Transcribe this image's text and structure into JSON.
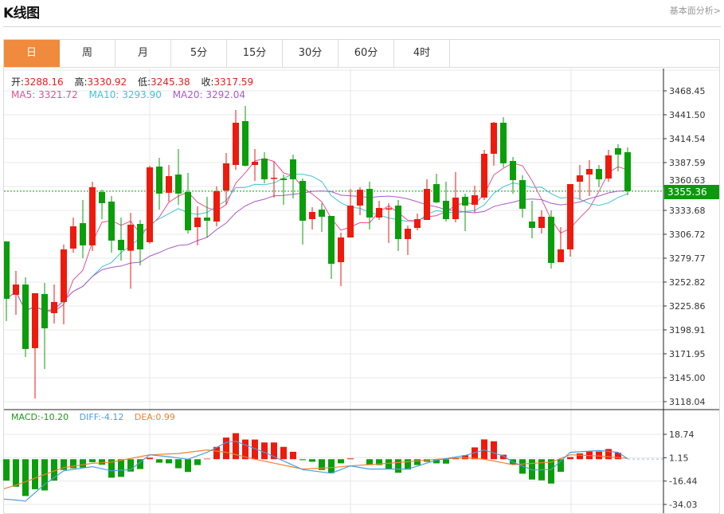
{
  "header": {
    "title": "K线图",
    "link": "基本面分析>"
  },
  "tabs": [
    {
      "label": "日",
      "active": true
    },
    {
      "label": "周"
    },
    {
      "label": "月"
    },
    {
      "label": "5分"
    },
    {
      "label": "15分"
    },
    {
      "label": "30分"
    },
    {
      "label": "60分"
    },
    {
      "label": "4时"
    }
  ],
  "info": {
    "open_label": "开:",
    "open": "3288.16",
    "high_label": "高:",
    "high": "3330.92",
    "low_label": "低:",
    "low": "3245.38",
    "close_label": "收:",
    "close": "3317.59"
  },
  "ma": {
    "ma5_label": "MA5:",
    "ma5": "3321.72",
    "ma10_label": "MA10:",
    "ma10": "3293.90",
    "ma20_label": "MA20:",
    "ma20": "3292.04"
  },
  "macd_info": {
    "macd_label": "MACD:",
    "macd": "-10.20",
    "diff_label": "DIFF:",
    "diff": "-4.12",
    "dea_label": "DEA:",
    "dea": "0.99"
  },
  "colors": {
    "up": "#ee1a0c",
    "down": "#0a9e0a",
    "ma5": "#e5508f",
    "ma10": "#3fc4d4",
    "ma20": "#a85ac8",
    "diff": "#4a9de0",
    "dea": "#f08030",
    "macd": "#1a9a1a",
    "accent": "#f08a3c",
    "last_price": "#0a9a0a"
  },
  "chart_data": [
    {
      "type": "candlestick",
      "ohlc_order": [
        "open",
        "high",
        "low",
        "close"
      ],
      "candles": [
        [
          3298.7,
          3298.7,
          3208.8,
          3234.0
        ],
        [
          3238.5,
          3265.4,
          3216.0,
          3250.1
        ],
        [
          3250.1,
          3258.2,
          3168.4,
          3177.4
        ],
        [
          3178.3,
          3240.3,
          3121.6,
          3240.3
        ],
        [
          3239.4,
          3251.9,
          3154.9,
          3200.7
        ],
        [
          3217.8,
          3250.1,
          3206.1,
          3230.4
        ],
        [
          3230.4,
          3295.1,
          3205.2,
          3289.7
        ],
        [
          3290.6,
          3325.6,
          3286.1,
          3315.7
        ],
        [
          3319.3,
          3345.4,
          3279.8,
          3294.2
        ],
        [
          3294.2,
          3366.0,
          3287.9,
          3359.8
        ],
        [
          3354.4,
          3357.0,
          3323.8,
          3341.8
        ],
        [
          3343.6,
          3349.9,
          3286.1,
          3299.6
        ],
        [
          3300.5,
          3325.6,
          3277.1,
          3288.8
        ],
        [
          3288.16,
          3330.92,
          3245.38,
          3317.59
        ],
        [
          3318.4,
          3322.9,
          3271.7,
          3289.7
        ],
        [
          3297.8,
          3384.0,
          3296.0,
          3382.2
        ],
        [
          3383.1,
          3393.0,
          3334.6,
          3352.6
        ],
        [
          3353.5,
          3384.9,
          3343.6,
          3372.3
        ],
        [
          3374.1,
          3402.9,
          3340.0,
          3352.6
        ],
        [
          3354.4,
          3375.9,
          3307.6,
          3311.2
        ],
        [
          3314.8,
          3338.2,
          3294.2,
          3325.6
        ],
        [
          3325.6,
          3349.0,
          3303.1,
          3322.0
        ],
        [
          3321.1,
          3360.7,
          3315.7,
          3355.3
        ],
        [
          3356.1,
          3398.4,
          3340.0,
          3386.7
        ],
        [
          3384.9,
          3446.9,
          3379.5,
          3432.5
        ],
        [
          3434.3,
          3451.4,
          3383.1,
          3384.0
        ],
        [
          3384.9,
          3402.9,
          3366.9,
          3388.5
        ],
        [
          3392.1,
          3399.3,
          3364.2,
          3368.7
        ],
        [
          3369.6,
          3388.5,
          3348.1,
          3370.5
        ],
        [
          3369.6,
          3374.1,
          3340.0,
          3367.8
        ],
        [
          3391.2,
          3396.6,
          3347.2,
          3368.7
        ],
        [
          3366.9,
          3369.6,
          3295.1,
          3322.0
        ],
        [
          3323.8,
          3337.3,
          3312.1,
          3331.9
        ],
        [
          3334.6,
          3341.8,
          3309.4,
          3326.5
        ],
        [
          3327.4,
          3327.4,
          3256.4,
          3273.5
        ],
        [
          3275.3,
          3308.5,
          3248.3,
          3303.1
        ],
        [
          3303.1,
          3357.9,
          3303.1,
          3339.1
        ],
        [
          3339.1,
          3359.8,
          3328.3,
          3357.0
        ],
        [
          3357.9,
          3366.0,
          3312.1,
          3325.6
        ],
        [
          3325.6,
          3344.5,
          3322.9,
          3336.4
        ],
        [
          3335.0,
          3341.8,
          3296.9,
          3336.0
        ],
        [
          3339.1,
          3345.4,
          3287.9,
          3301.3
        ],
        [
          3301.3,
          3316.6,
          3283.4,
          3313.0
        ],
        [
          3313.9,
          3330.1,
          3311.2,
          3323.8
        ],
        [
          3322.9,
          3368.7,
          3322.9,
          3357.9
        ],
        [
          3363.3,
          3375.0,
          3341.8,
          3342.7
        ],
        [
          3344.5,
          3366.0,
          3321.1,
          3323.8
        ],
        [
          3323.8,
          3376.8,
          3320.2,
          3348.1
        ],
        [
          3349.0,
          3352.6,
          3310.3,
          3339.1
        ],
        [
          3340.0,
          3361.5,
          3331.0,
          3350.8
        ],
        [
          3348.1,
          3402.0,
          3345.4,
          3397.5
        ],
        [
          3397.5,
          3433.4,
          3384.0,
          3432.5
        ],
        [
          3432.5,
          3438.8,
          3382.2,
          3386.7
        ],
        [
          3389.4,
          3393.9,
          3352.6,
          3367.8
        ],
        [
          3367.8,
          3373.2,
          3325.6,
          3335.5
        ],
        [
          3321.1,
          3344.5,
          3302.2,
          3313.9
        ],
        [
          3313.9,
          3333.7,
          3307.6,
          3326.5
        ],
        [
          3326.5,
          3333.7,
          3268.1,
          3274.4
        ],
        [
          3275.3,
          3314.8,
          3275.3,
          3289.7
        ],
        [
          3289.7,
          3363.3,
          3281.6,
          3363.3
        ],
        [
          3366.0,
          3384.9,
          3346.3,
          3373.2
        ],
        [
          3374.1,
          3390.3,
          3349.9,
          3380.4
        ],
        [
          3380.4,
          3384.9,
          3359.8,
          3368.7
        ],
        [
          3369.6,
          3402.0,
          3366.0,
          3395.7
        ],
        [
          3403.8,
          3408.3,
          3377.7,
          3396.6
        ],
        [
          3399.3,
          3404.7,
          3350.8,
          3355.36
        ]
      ],
      "moving_averages": [
        5,
        10,
        20
      ],
      "y_ticks": [
        "3468.45",
        "3441.50",
        "3414.54",
        "3387.59",
        "3360.63",
        "3333.68",
        "3306.72",
        "3279.77",
        "3252.82",
        "3225.86",
        "3198.91",
        "3171.95",
        "3145.00",
        "3118.04"
      ],
      "ylim": [
        3118.04,
        3468.45
      ],
      "last_price": "3355.36",
      "grid": true
    },
    {
      "type": "bar",
      "name": "MACD",
      "histogram": [
        -16.1,
        -20.7,
        -27.7,
        -22.6,
        -23.5,
        -16.1,
        -8.1,
        -6.8,
        -6.3,
        -2.2,
        -4.1,
        -13.9,
        -13.3,
        -9.3,
        -7.4,
        1.1,
        -2.6,
        -3.1,
        -6.8,
        -9.6,
        -4.4,
        0.4,
        9.3,
        16.3,
        19.6,
        14.8,
        14.8,
        12.6,
        12.6,
        9.3,
        5.6,
        -0.7,
        -1.9,
        -8.1,
        -10.5,
        -3.1,
        0.6,
        0,
        -4.4,
        -4.4,
        -7.4,
        -10.2,
        -7.8,
        -4.4,
        -1.9,
        -3.1,
        -3.3,
        1.1,
        3.0,
        8.9,
        14.9,
        13.5,
        3.4,
        -4.0,
        -10.9,
        -15.3,
        -15.9,
        -18.3,
        -9.5,
        1.6,
        4.4,
        5.8,
        5.8,
        7.7,
        4.9,
        0
      ],
      "diff_points": [
        [
          0,
          -30
        ],
        [
          2,
          -31.5
        ],
        [
          4,
          -18.9
        ],
        [
          6,
          -8.7
        ],
        [
          9,
          -5.6
        ],
        [
          11,
          -8.7
        ],
        [
          13,
          -7.8
        ],
        [
          15,
          3.3
        ],
        [
          17,
          1.9
        ],
        [
          19,
          0
        ],
        [
          21,
          5.2
        ],
        [
          23,
          12.6
        ],
        [
          24,
          13.5
        ],
        [
          27,
          5.2
        ],
        [
          31,
          -7.8
        ],
        [
          34,
          -10.5
        ],
        [
          36,
          -5.0
        ],
        [
          38,
          -7.4
        ],
        [
          42,
          -7.4
        ],
        [
          45,
          -0.7
        ],
        [
          48,
          2.8
        ],
        [
          50,
          7.0
        ],
        [
          52,
          2.4
        ],
        [
          53,
          -2.2
        ],
        [
          55,
          -8.1
        ],
        [
          57,
          -7.8
        ],
        [
          59,
          5.2
        ],
        [
          62,
          6.5
        ],
        [
          64,
          5.2
        ],
        [
          65,
          0.4
        ]
      ],
      "dea_points": [
        [
          0,
          -22.2
        ],
        [
          4,
          -11.5
        ],
        [
          6,
          -6.3
        ],
        [
          9,
          -3.1
        ],
        [
          11,
          -2.2
        ],
        [
          15,
          3.3
        ],
        [
          18,
          4.3
        ],
        [
          21,
          7.0
        ],
        [
          23,
          5.2
        ],
        [
          26,
          0
        ],
        [
          31,
          -7.4
        ],
        [
          34,
          -6.3
        ],
        [
          36,
          -5.0
        ],
        [
          40,
          -3.1
        ],
        [
          45,
          0
        ],
        [
          48,
          1.1
        ],
        [
          50,
          0
        ],
        [
          53,
          -4.1
        ],
        [
          57,
          -2.2
        ],
        [
          59,
          3.3
        ],
        [
          62,
          2.4
        ],
        [
          65,
          0.6
        ]
      ],
      "y_ticks": [
        "18.74",
        "1.15",
        "-16.44",
        "-34.03"
      ],
      "ylim": [
        -34.03,
        18.74
      ]
    }
  ]
}
